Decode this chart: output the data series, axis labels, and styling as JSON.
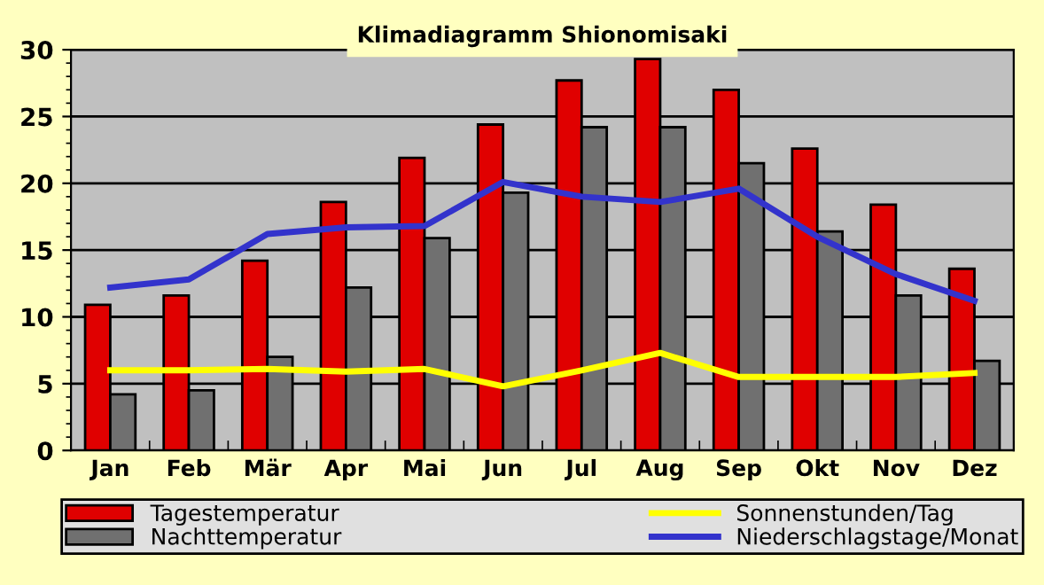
{
  "chart_data": {
    "type": "bar",
    "title": "Klimadiagramm Shionomisaki",
    "categories": [
      "Jan",
      "Feb",
      "Mär",
      "Apr",
      "Mai",
      "Jun",
      "Jul",
      "Aug",
      "Sep",
      "Okt",
      "Nov",
      "Dez"
    ],
    "series": [
      {
        "name": "Tagestemperatur",
        "color": "#e00000",
        "values": [
          10.9,
          11.6,
          14.2,
          18.6,
          21.9,
          24.4,
          27.7,
          29.3,
          27.0,
          22.6,
          18.4,
          13.6
        ]
      },
      {
        "name": "Nachttemperatur",
        "color": "#707070",
        "values": [
          4.2,
          4.5,
          7.0,
          12.2,
          15.9,
          19.3,
          24.2,
          24.2,
          21.5,
          16.4,
          11.6,
          6.7
        ]
      },
      {
        "name": "Sonnenstunden/Tag",
        "type": "line",
        "color": "#ffff00",
        "values": [
          6.0,
          6.0,
          6.1,
          5.9,
          6.1,
          4.8,
          6.0,
          7.3,
          5.5,
          5.5,
          5.5,
          5.8
        ]
      },
      {
        "name": "Niederschlagstage/Monat",
        "type": "line",
        "color": "#3333cc",
        "values": [
          12.2,
          12.8,
          16.2,
          16.7,
          16.8,
          20.1,
          19.0,
          18.6,
          19.6,
          16.0,
          13.2,
          11.2
        ]
      }
    ],
    "ylim": [
      0,
      30
    ],
    "yticks": [
      0,
      5,
      10,
      15,
      20,
      25,
      30
    ],
    "grid": "y",
    "legend": "bottom",
    "marker": "none",
    "line_style": "solid"
  }
}
